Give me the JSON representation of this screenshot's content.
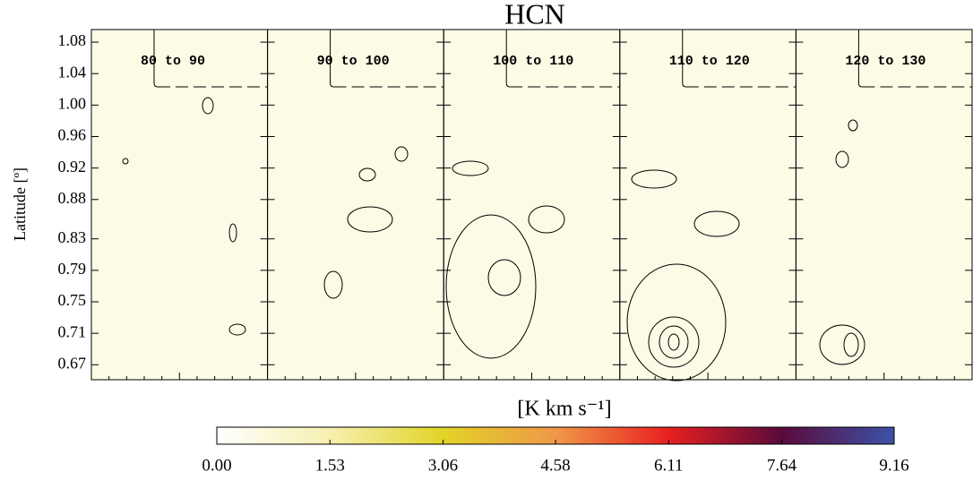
{
  "chart_data": {
    "type": "channel-map",
    "title": "HCN",
    "ylabel": "Latitude [º]",
    "panels": [
      "80 to 90",
      "90 to 100",
      "100 to 110",
      "110 to 120",
      "120 to 130"
    ],
    "ylim": [
      0.651,
      1.096
    ],
    "yticks": [
      1.08,
      1.04,
      {
        "value": 1.0,
        "label": "1.00"
      },
      0.96,
      0.92,
      0.88,
      0.83,
      0.79,
      0.75,
      0.71,
      0.67
    ],
    "colorbar": {
      "label": "[K km s⁻¹]",
      "lim": [
        0,
        9.16
      ],
      "ticks": [
        {
          "value": 0,
          "label": "0.00"
        },
        1.53,
        3.06,
        4.58,
        6.11,
        7.64,
        9.16
      ],
      "colors": [
        "#ffffff",
        "#f6f0b0",
        "#e2d428",
        "#f09848",
        "#e82020",
        "#5a0a3a",
        "#3c52a8"
      ]
    }
  }
}
